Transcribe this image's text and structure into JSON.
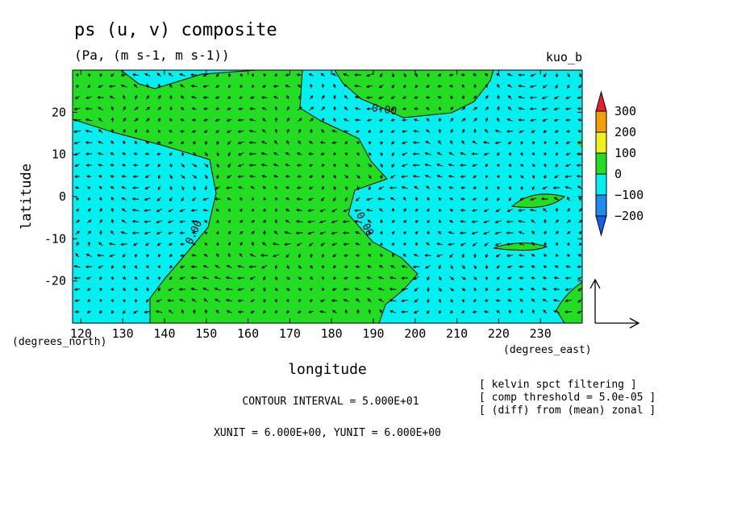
{
  "chart_data": {
    "type": "contour",
    "title": "ps (u, v) composite",
    "subtitle": "(Pa, (m s-1, m s-1))",
    "run_label": "kuo_b",
    "xlabel": "longitude",
    "ylabel": "latitude",
    "x_unit_label": "(degrees_east)",
    "y_unit_label": "(degrees_north)",
    "xlim": [
      118,
      240
    ],
    "ylim": [
      -30,
      30
    ],
    "x_ticks": [
      120,
      130,
      140,
      150,
      160,
      170,
      180,
      190,
      200,
      210,
      220,
      230
    ],
    "x_tick_labels": [
      "120",
      "130",
      "140",
      "150",
      "160",
      "170",
      "180",
      "190",
      "200",
      "210",
      "220",
      "230"
    ],
    "y_ticks": [
      20,
      10,
      0,
      -10,
      -20
    ],
    "y_tick_labels": [
      "20",
      "10",
      "0",
      "-10",
      "-20"
    ],
    "contour_labels": [
      "0.00",
      "0.00",
      "0.00"
    ],
    "colorbar": {
      "labels": [
        "300",
        "200",
        "100",
        "0",
        "−100",
        "−200"
      ],
      "colors": [
        "#e8202a",
        "#f59e0b",
        "#f0f01e",
        "#22dd22",
        "#00f0f0",
        "#1e8cf0",
        "#1460e8"
      ]
    },
    "fill_colors": {
      "positive": "#22dd22",
      "negative": "#00f0f0"
    },
    "info_box": [
      "[ kelvin spct filtering ]",
      "[ comp threshold = 5.0e-05 ]",
      "[ (diff) from (mean) zonal ]"
    ],
    "contour_interval_text": "CONTOUR INTERVAL = 5.000E+01",
    "units_text": "XUNIT = 6.000E+00, YUNIT = 6.000E+00"
  }
}
